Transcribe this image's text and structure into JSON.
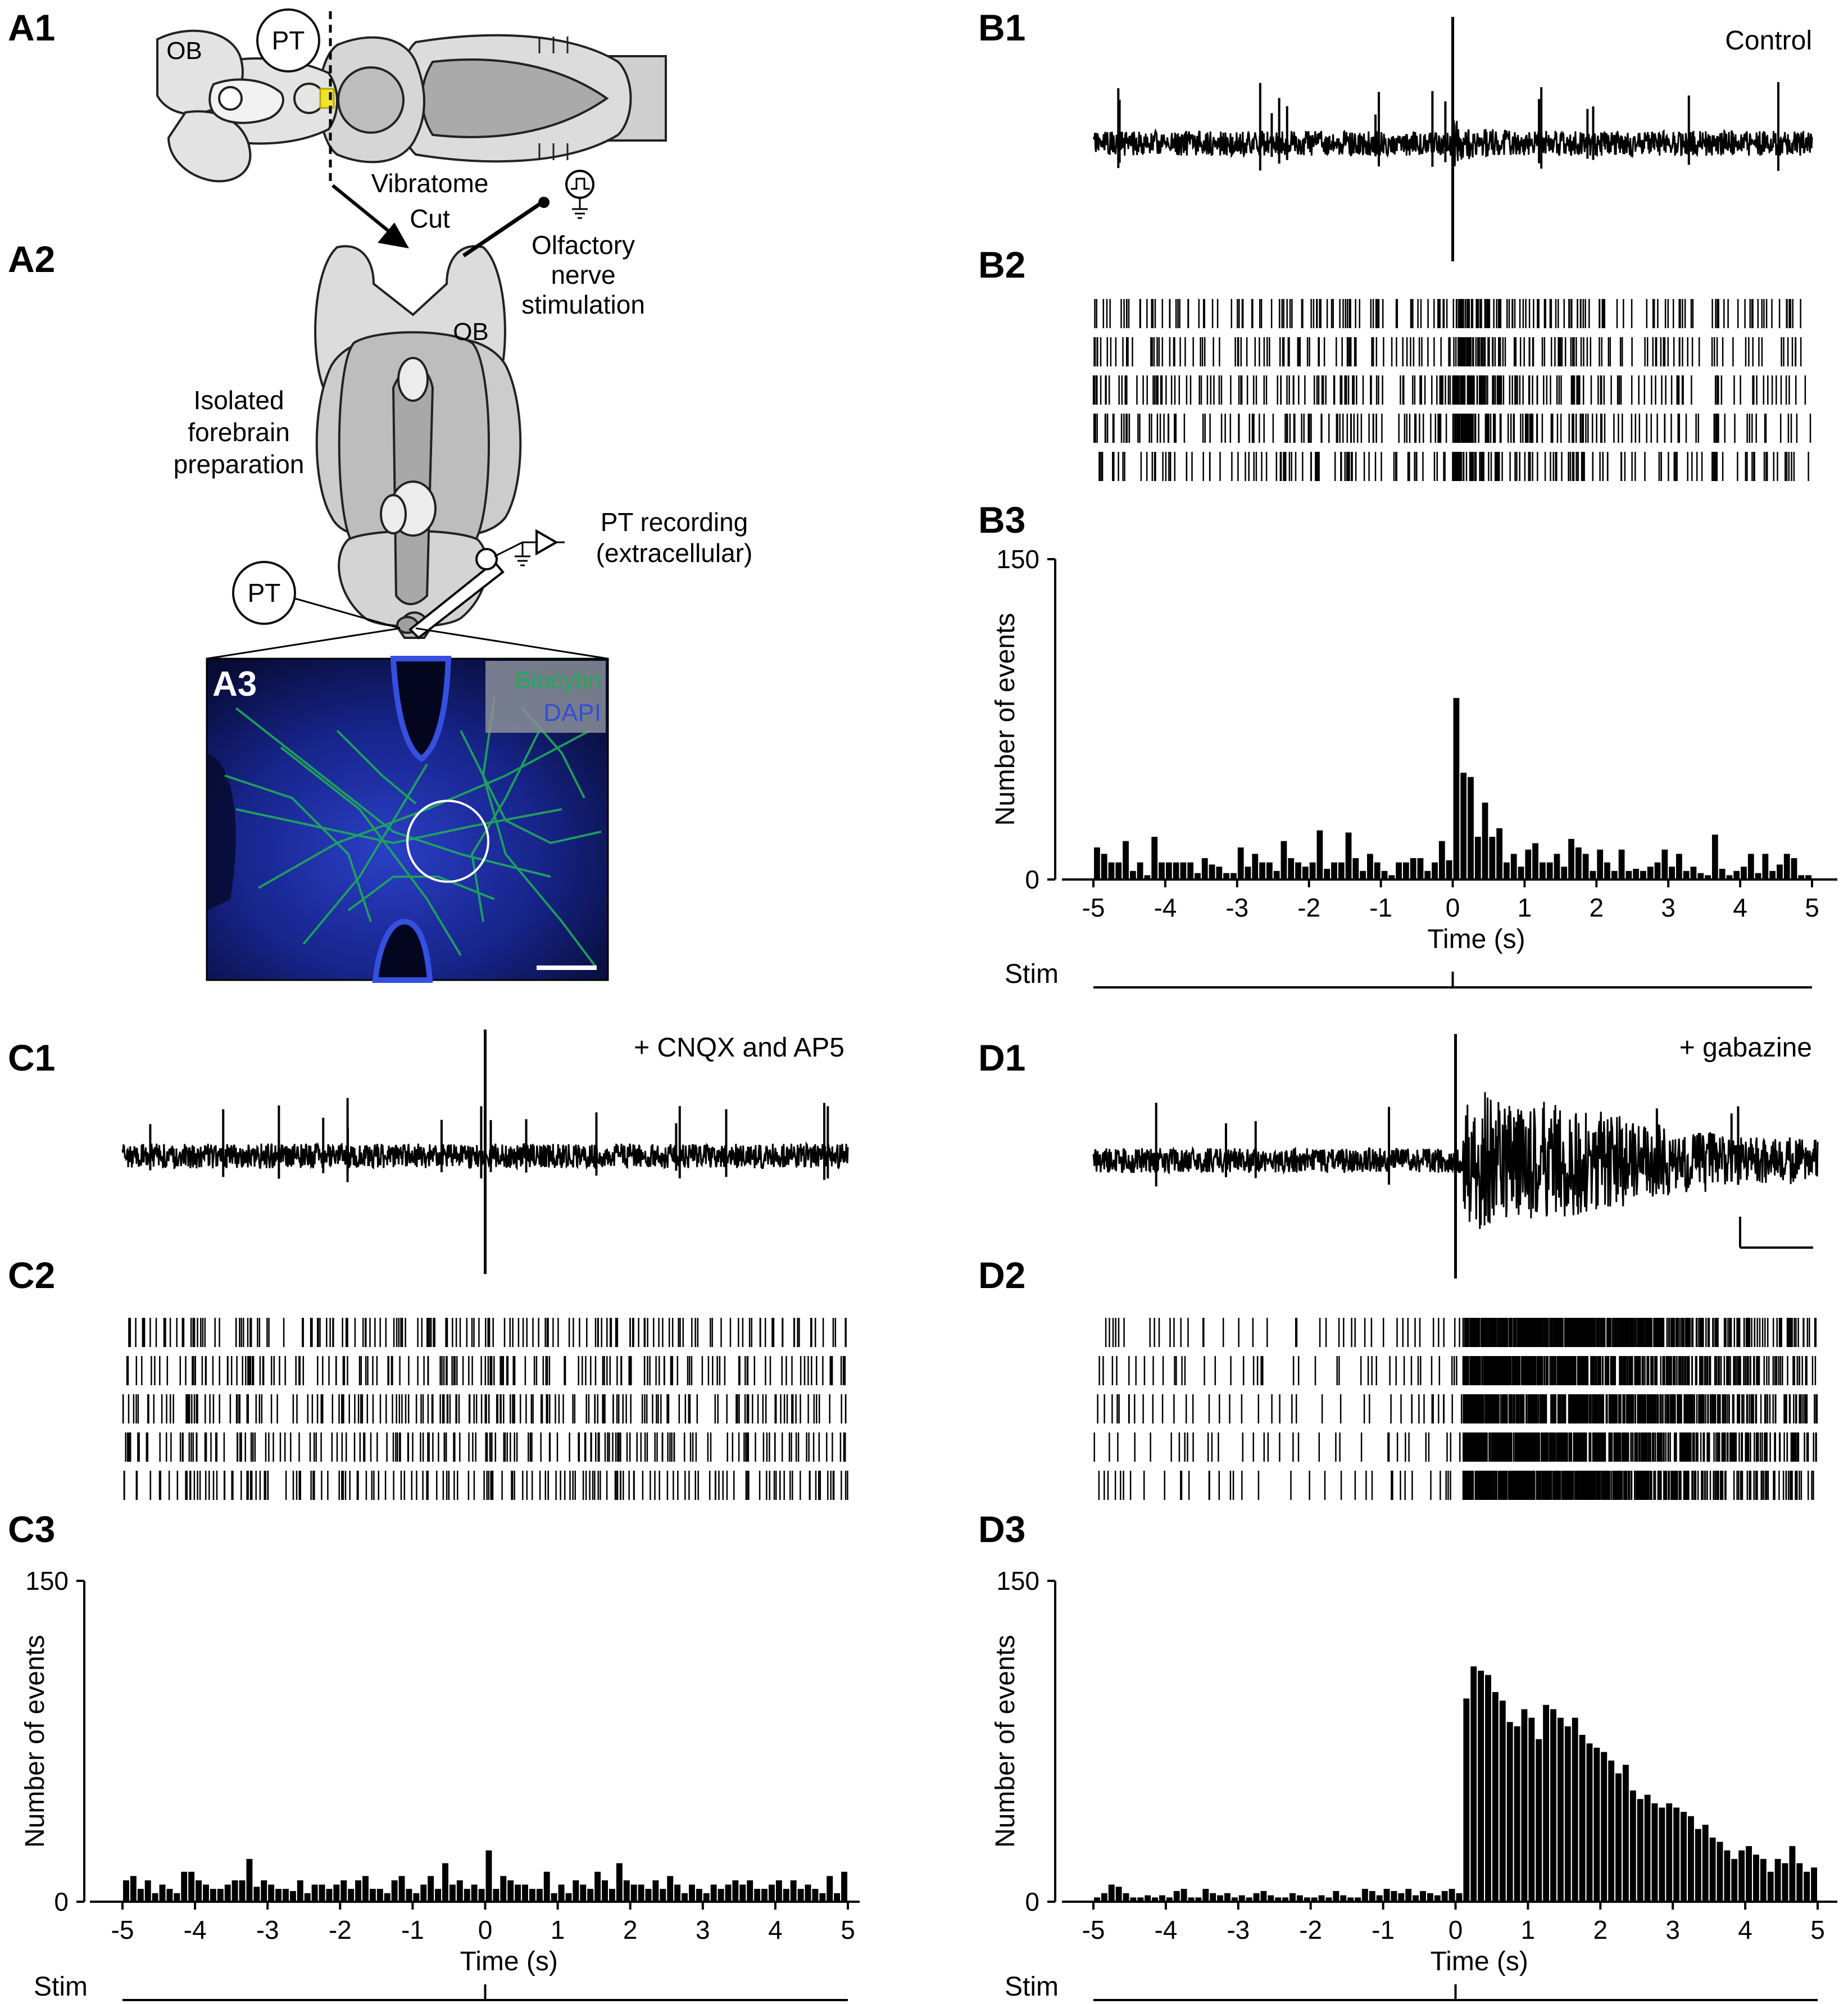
{
  "panel_labels": {
    "A1": "A1",
    "A2": "A2",
    "A3": "A3",
    "B1": "B1",
    "B2": "B2",
    "B3": "B3",
    "C1": "C1",
    "C2": "C2",
    "C3": "C3",
    "D1": "D1",
    "D2": "D2",
    "D3": "D3"
  },
  "schematic": {
    "ob_top": "OB",
    "pt_top": "PT",
    "vibratome_line1": "Vibratome",
    "vibratome_line2": "Cut",
    "olfactory_line1": "Olfactory",
    "olfactory_line2": "nerve",
    "olfactory_line3": "stimulation",
    "ob_prep": "OB",
    "isolated_line1": "Isolated",
    "isolated_line2": "forebrain",
    "isolated_line3": "preparation",
    "pt_recording_line1": "PT recording",
    "pt_recording_line2": "(extracellular)",
    "pt_bottom": "PT",
    "micrograph_legend_biocytin": "Biocytin",
    "micrograph_legend_dapi": "DAPI"
  },
  "colors": {
    "biocytin": "#1faa5a",
    "dapi": "#2f4fd8",
    "marker_yellow": "#f2e32a",
    "tissue_gray": "#d9d9d9",
    "trace": "#000000"
  },
  "conditions": {
    "B": "Control",
    "C": "+ CNQX and AP5",
    "D": "+ gabazine"
  },
  "axis": {
    "ylabel": "Number of events",
    "xlabel": "Time (s)",
    "stim_label": "Stim",
    "y_tick_top": "150",
    "y_tick_bottom": "0",
    "x_ticks": [
      "-5",
      "-4",
      "-3",
      "-2",
      "-1",
      "0",
      "1",
      "2",
      "3",
      "4",
      "5"
    ]
  },
  "chart_data": [
    {
      "panel": "B3",
      "type": "bar",
      "condition": "Control",
      "xlabel": "Time (s)",
      "ylabel": "Number of events",
      "xlim": [
        -5,
        5
      ],
      "ylim": [
        0,
        150
      ],
      "bin_width_s": 0.1,
      "bin_start": [
        -5.0,
        -4.9,
        -4.8,
        -4.7,
        -4.6,
        -4.5,
        -4.4,
        -4.3,
        -4.2,
        -4.1,
        -4.0,
        -3.9,
        -3.8,
        -3.7,
        -3.6,
        -3.5,
        -3.4,
        -3.3,
        -3.2,
        -3.1,
        -3.0,
        -2.9,
        -2.8,
        -2.7,
        -2.6,
        -2.5,
        -2.4,
        -2.3,
        -2.2,
        -2.1,
        -2.0,
        -1.9,
        -1.8,
        -1.7,
        -1.6,
        -1.5,
        -1.4,
        -1.3,
        -1.2,
        -1.1,
        -1.0,
        -0.9,
        -0.8,
        -0.7,
        -0.6,
        -0.5,
        -0.4,
        -0.3,
        -0.2,
        -0.1,
        0.0,
        0.1,
        0.2,
        0.3,
        0.4,
        0.5,
        0.6,
        0.7,
        0.8,
        0.9,
        1.0,
        1.1,
        1.2,
        1.3,
        1.4,
        1.5,
        1.6,
        1.7,
        1.8,
        1.9,
        2.0,
        2.1,
        2.2,
        2.3,
        2.4,
        2.5,
        2.6,
        2.7,
        2.8,
        2.9,
        3.0,
        3.1,
        3.2,
        3.3,
        3.4,
        3.5,
        3.6,
        3.7,
        3.8,
        3.9,
        4.0,
        4.1,
        4.2,
        4.3,
        4.4,
        4.5,
        4.6,
        4.7,
        4.8,
        4.9
      ],
      "values": [
        15,
        12,
        8,
        8,
        18,
        4,
        8,
        2,
        20,
        8,
        8,
        8,
        8,
        8,
        3,
        10,
        7,
        6,
        3,
        3,
        15,
        6,
        12,
        8,
        8,
        4,
        18,
        10,
        8,
        6,
        8,
        23,
        5,
        8,
        8,
        22,
        10,
        4,
        12,
        8,
        4,
        2,
        8,
        8,
        10,
        10,
        4,
        8,
        18,
        9,
        85,
        50,
        48,
        20,
        36,
        20,
        24,
        8,
        12,
        6,
        14,
        17,
        8,
        8,
        12,
        6,
        19,
        15,
        12,
        4,
        14,
        8,
        4,
        14,
        4,
        5,
        4,
        6,
        8,
        14,
        6,
        12,
        4,
        6,
        3,
        2,
        21,
        5,
        2,
        4,
        6,
        12,
        3,
        12,
        4,
        7,
        12,
        10,
        2,
        2
      ]
    },
    {
      "panel": "C3",
      "type": "bar",
      "condition": "+ CNQX and AP5",
      "xlabel": "Time (s)",
      "ylabel": "Number of events",
      "xlim": [
        -5,
        5
      ],
      "ylim": [
        0,
        150
      ],
      "bin_width_s": 0.1,
      "bin_start": [
        -5.0,
        -4.9,
        -4.8,
        -4.7,
        -4.6,
        -4.5,
        -4.4,
        -4.3,
        -4.2,
        -4.1,
        -4.0,
        -3.9,
        -3.8,
        -3.7,
        -3.6,
        -3.5,
        -3.4,
        -3.3,
        -3.2,
        -3.1,
        -3.0,
        -2.9,
        -2.8,
        -2.7,
        -2.6,
        -2.5,
        -2.4,
        -2.3,
        -2.2,
        -2.1,
        -2.0,
        -1.9,
        -1.8,
        -1.7,
        -1.6,
        -1.5,
        -1.4,
        -1.3,
        -1.2,
        -1.1,
        -1.0,
        -0.9,
        -0.8,
        -0.7,
        -0.6,
        -0.5,
        -0.4,
        -0.3,
        -0.2,
        -0.1,
        0.0,
        0.1,
        0.2,
        0.3,
        0.4,
        0.5,
        0.6,
        0.7,
        0.8,
        0.9,
        1.0,
        1.1,
        1.2,
        1.3,
        1.4,
        1.5,
        1.6,
        1.7,
        1.8,
        1.9,
        2.0,
        2.1,
        2.2,
        2.3,
        2.4,
        2.5,
        2.6,
        2.7,
        2.8,
        2.9,
        3.0,
        3.1,
        3.2,
        3.3,
        3.4,
        3.5,
        3.6,
        3.7,
        3.8,
        3.9,
        4.0,
        4.1,
        4.2,
        4.3,
        4.4,
        4.5,
        4.6,
        4.7,
        4.8,
        4.9
      ],
      "values": [
        10,
        12,
        6,
        10,
        4,
        8,
        6,
        4,
        14,
        14,
        10,
        8,
        6,
        6,
        8,
        10,
        10,
        20,
        7,
        10,
        8,
        6,
        6,
        5,
        10,
        4,
        8,
        8,
        6,
        8,
        10,
        6,
        10,
        12,
        6,
        6,
        4,
        10,
        12,
        6,
        4,
        8,
        12,
        6,
        18,
        8,
        10,
        6,
        8,
        6,
        24,
        6,
        12,
        10,
        8,
        8,
        6,
        6,
        14,
        4,
        8,
        4,
        10,
        8,
        6,
        14,
        10,
        6,
        18,
        10,
        8,
        8,
        6,
        10,
        6,
        12,
        8,
        4,
        8,
        6,
        4,
        8,
        6,
        8,
        10,
        8,
        10,
        6,
        6,
        8,
        10,
        6,
        10,
        6,
        8,
        6,
        4,
        12,
        4,
        14
      ]
    },
    {
      "panel": "D3",
      "type": "bar",
      "condition": "+ gabazine",
      "xlabel": "Time (s)",
      "ylabel": "Number of events",
      "xlim": [
        -5,
        5
      ],
      "ylim": [
        0,
        150
      ],
      "bin_width_s": 0.1,
      "bin_start": [
        -5.0,
        -4.9,
        -4.8,
        -4.7,
        -4.6,
        -4.5,
        -4.4,
        -4.3,
        -4.2,
        -4.1,
        -4.0,
        -3.9,
        -3.8,
        -3.7,
        -3.6,
        -3.5,
        -3.4,
        -3.3,
        -3.2,
        -3.1,
        -3.0,
        -2.9,
        -2.8,
        -2.7,
        -2.6,
        -2.5,
        -2.4,
        -2.3,
        -2.2,
        -2.1,
        -2.0,
        -1.9,
        -1.8,
        -1.7,
        -1.6,
        -1.5,
        -1.4,
        -1.3,
        -1.2,
        -1.1,
        -1.0,
        -0.9,
        -0.8,
        -0.7,
        -0.6,
        -0.5,
        -0.4,
        -0.3,
        -0.2,
        -0.1,
        0.0,
        0.1,
        0.2,
        0.3,
        0.4,
        0.5,
        0.6,
        0.7,
        0.8,
        0.9,
        1.0,
        1.1,
        1.2,
        1.3,
        1.4,
        1.5,
        1.6,
        1.7,
        1.8,
        1.9,
        2.0,
        2.1,
        2.2,
        2.3,
        2.4,
        2.5,
        2.6,
        2.7,
        2.8,
        2.9,
        3.0,
        3.1,
        3.2,
        3.3,
        3.4,
        3.5,
        3.6,
        3.7,
        3.8,
        3.9,
        4.0,
        4.1,
        4.2,
        4.3,
        4.4,
        4.5,
        4.6,
        4.7,
        4.8,
        4.9
      ],
      "values": [
        2,
        4,
        8,
        7,
        4,
        2,
        2,
        3,
        2,
        3,
        2,
        5,
        6,
        2,
        2,
        6,
        4,
        3,
        4,
        2,
        3,
        2,
        4,
        5,
        3,
        2,
        2,
        4,
        3,
        2,
        2,
        3,
        2,
        5,
        3,
        2,
        2,
        6,
        5,
        3,
        6,
        5,
        4,
        6,
        3,
        5,
        4,
        3,
        5,
        6,
        4,
        95,
        110,
        108,
        106,
        98,
        94,
        84,
        82,
        90,
        86,
        76,
        92,
        90,
        86,
        82,
        86,
        78,
        74,
        72,
        70,
        66,
        60,
        64,
        52,
        48,
        50,
        46,
        44,
        46,
        44,
        42,
        40,
        34,
        36,
        30,
        28,
        24,
        20,
        24,
        26,
        22,
        20,
        14,
        20,
        18,
        26,
        18,
        14,
        16
      ]
    }
  ]
}
